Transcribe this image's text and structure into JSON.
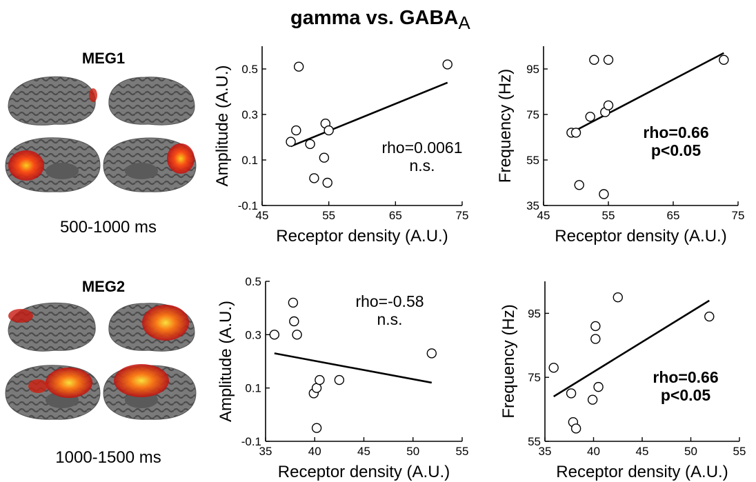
{
  "figure": {
    "title_main": "gamma vs. GABA",
    "title_sub": "A",
    "rows": [
      {
        "label": "MEG1",
        "time_window": "500-1000 ms"
      },
      {
        "label": "MEG2",
        "time_window": "1000-1500 ms"
      }
    ]
  },
  "chart_data": [
    {
      "type": "scatter",
      "xlabel": "Receptor density (A.U.)",
      "ylabel": "Amplitude (A.U.)",
      "xlim": [
        45,
        75
      ],
      "ylim": [
        -0.1,
        0.6
      ],
      "xticks": [
        "45",
        "55",
        "65",
        "75"
      ],
      "yticks": [
        "-0.1",
        "0.1",
        "0.3",
        "0.5"
      ],
      "xtick_vals": [
        45,
        55,
        65,
        75
      ],
      "ytick_vals": [
        -0.1,
        0.1,
        0.3,
        0.5
      ],
      "x": [
        49.3,
        50.1,
        50.5,
        52.2,
        52.8,
        54.3,
        54.5,
        54.8,
        55.0,
        72.8
      ],
      "y": [
        0.18,
        0.23,
        0.51,
        0.17,
        0.02,
        0.11,
        0.26,
        0.0,
        0.23,
        0.52
      ],
      "fit": [
        [
          49.3,
          0.16
        ],
        [
          72.8,
          0.44
        ]
      ],
      "annotation": [
        "rho=0.0061",
        "n.s."
      ],
      "annotation_bold": false
    },
    {
      "type": "scatter",
      "xlabel": "Receptor density (A.U.)",
      "ylabel": "Frequency (Hz)",
      "xlim": [
        45,
        75
      ],
      "ylim": [
        35,
        105
      ],
      "xticks": [
        "45",
        "55",
        "65",
        "75"
      ],
      "yticks": [
        "35",
        "55",
        "75",
        "95"
      ],
      "xtick_vals": [
        45,
        55,
        65,
        75
      ],
      "ytick_vals": [
        35,
        55,
        75,
        95
      ],
      "x": [
        49.3,
        50.0,
        50.5,
        52.2,
        52.8,
        54.3,
        54.5,
        55.0,
        55.0,
        72.8
      ],
      "y": [
        67,
        67,
        44,
        74,
        99,
        40,
        76,
        79,
        99,
        99
      ],
      "fit": [
        [
          49.3,
          67
        ],
        [
          72.8,
          102
        ]
      ],
      "annotation": [
        "rho=0.66",
        "p<0.05"
      ],
      "annotation_bold": true
    },
    {
      "type": "scatter",
      "xlabel": "Receptor density (A.U.)",
      "ylabel": "Amplitude (A.U.)",
      "xlim": [
        35,
        55
      ],
      "ylim": [
        -0.1,
        0.5
      ],
      "xticks": [
        "35",
        "40",
        "45",
        "50",
        "55"
      ],
      "yticks": [
        "-0.1",
        "0.1",
        "0.3",
        "0.5"
      ],
      "xtick_vals": [
        35,
        40,
        45,
        50,
        55
      ],
      "ytick_vals": [
        -0.1,
        0.1,
        0.3,
        0.5
      ],
      "x": [
        35.9,
        37.8,
        37.9,
        38.2,
        39.9,
        40.2,
        40.5,
        40.2,
        42.5,
        51.9
      ],
      "y": [
        0.3,
        0.42,
        0.35,
        0.3,
        0.08,
        0.1,
        0.13,
        -0.05,
        0.13,
        0.23
      ],
      "fit": [
        [
          35.9,
          0.23
        ],
        [
          51.9,
          0.12
        ]
      ],
      "annotation": [
        "rho=-0.58",
        "n.s."
      ],
      "annotation_bold": false
    },
    {
      "type": "scatter",
      "xlabel": "Receptor density (A.U.)",
      "ylabel": "Frequency (Hz)",
      "xlim": [
        35,
        55
      ],
      "ylim": [
        55,
        105
      ],
      "xticks": [
        "35",
        "40",
        "45",
        "50",
        "55"
      ],
      "yticks": [
        "55",
        "75",
        "95"
      ],
      "xtick_vals": [
        35,
        40,
        45,
        50,
        55
      ],
      "ytick_vals": [
        55,
        75,
        95
      ],
      "x": [
        35.9,
        37.7,
        37.9,
        38.2,
        39.9,
        40.2,
        40.2,
        40.5,
        42.5,
        51.9
      ],
      "y": [
        78,
        70,
        61,
        59,
        68,
        91,
        87,
        72,
        100,
        94
      ],
      "fit": [
        [
          35.9,
          69
        ],
        [
          51.9,
          99
        ]
      ],
      "annotation": [
        "rho=0.66",
        "p<0.05"
      ],
      "annotation_bold": true
    }
  ]
}
